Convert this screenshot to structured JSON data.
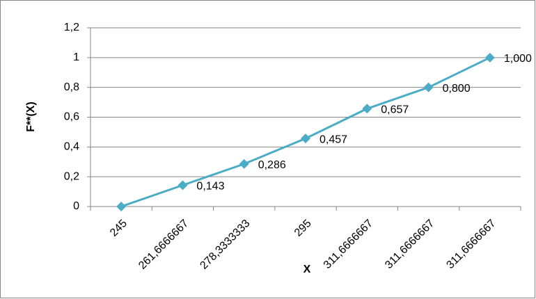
{
  "chart_data": {
    "type": "line",
    "x_label": "X",
    "y_label": "F**(X)",
    "categories": [
      "245",
      "261,6666667",
      "278,3333333",
      "295",
      "311,6666667",
      "311,6666667",
      "311,6666667"
    ],
    "series": [
      {
        "color": "#4bacc6",
        "values": [
          0,
          0.143,
          0.286,
          0.457,
          0.657,
          0.8,
          1.0
        ],
        "value_labels": [
          null,
          "0,143",
          "0,286",
          "0,457",
          "0,657",
          "0,800",
          "1,000"
        ]
      }
    ],
    "ylim": [
      0,
      1.2
    ],
    "yticks": [
      0,
      {
        "value": 0.2,
        "label": "0,2"
      },
      {
        "value": 0.4,
        "label": "0,4"
      },
      {
        "value": 0.6,
        "label": "0,6"
      },
      {
        "value": 0.8,
        "label": "0,8"
      },
      1,
      {
        "value": 1.2,
        "label": "1,2"
      }
    ],
    "grid": true
  }
}
